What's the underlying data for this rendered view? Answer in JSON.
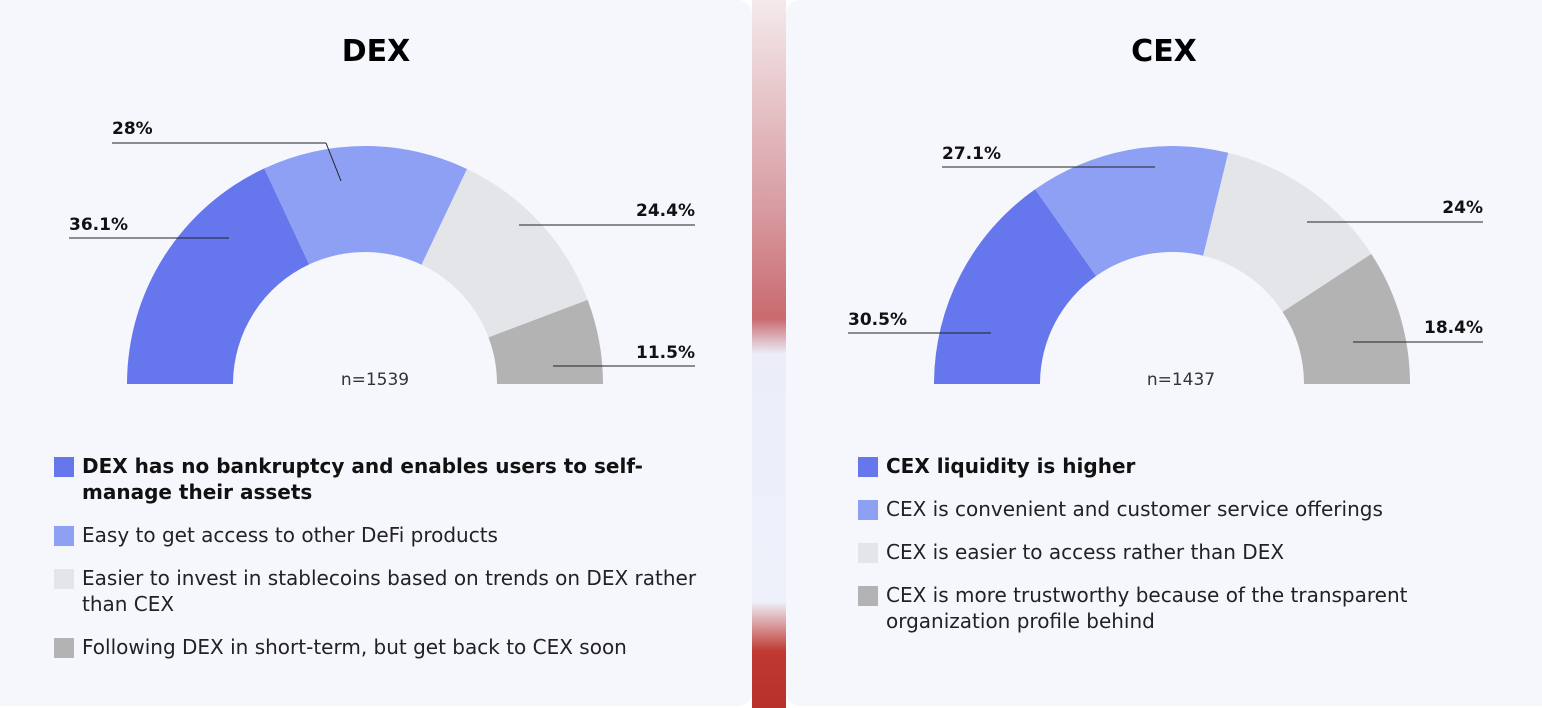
{
  "colors": {
    "segment_1": "#6677ee",
    "segment_2": "#8ea0f4",
    "segment_3": "#e3e5e9",
    "segment_4": "#b3b3b3"
  },
  "chart_data": [
    {
      "type": "pie",
      "title": "DEX",
      "note": "n=1539",
      "slices": [
        {
          "label": "DEX has no bankruptcy and enables users to self-manage their assets",
          "value": 36.1,
          "value_label": "36.1%"
        },
        {
          "label": "Easy to get access to other DeFi products",
          "value": 28,
          "value_label": "28%"
        },
        {
          "label": "Easier to invest in stablecoins based on trends on DEX rather than CEX",
          "value": 24.4,
          "value_label": "24.4%"
        },
        {
          "label": "Following DEX in short-term, but get back to CEX soon",
          "value": 11.5,
          "value_label": "11.5%"
        }
      ]
    },
    {
      "type": "pie",
      "title": "CEX",
      "note": "n=1437",
      "slices": [
        {
          "label": "CEX liquidity is higher",
          "value": 30.5,
          "value_label": "30.5%"
        },
        {
          "label": "CEX is convenient and customer service offerings",
          "value": 27.1,
          "value_label": "27.1%"
        },
        {
          "label": "CEX is easier to access rather than DEX",
          "value": 24,
          "value_label": "24%"
        },
        {
          "label": "CEX is more trustworthy because of the transparent organization profile behind",
          "value": 18.4,
          "value_label": "18.4%"
        }
      ]
    }
  ]
}
